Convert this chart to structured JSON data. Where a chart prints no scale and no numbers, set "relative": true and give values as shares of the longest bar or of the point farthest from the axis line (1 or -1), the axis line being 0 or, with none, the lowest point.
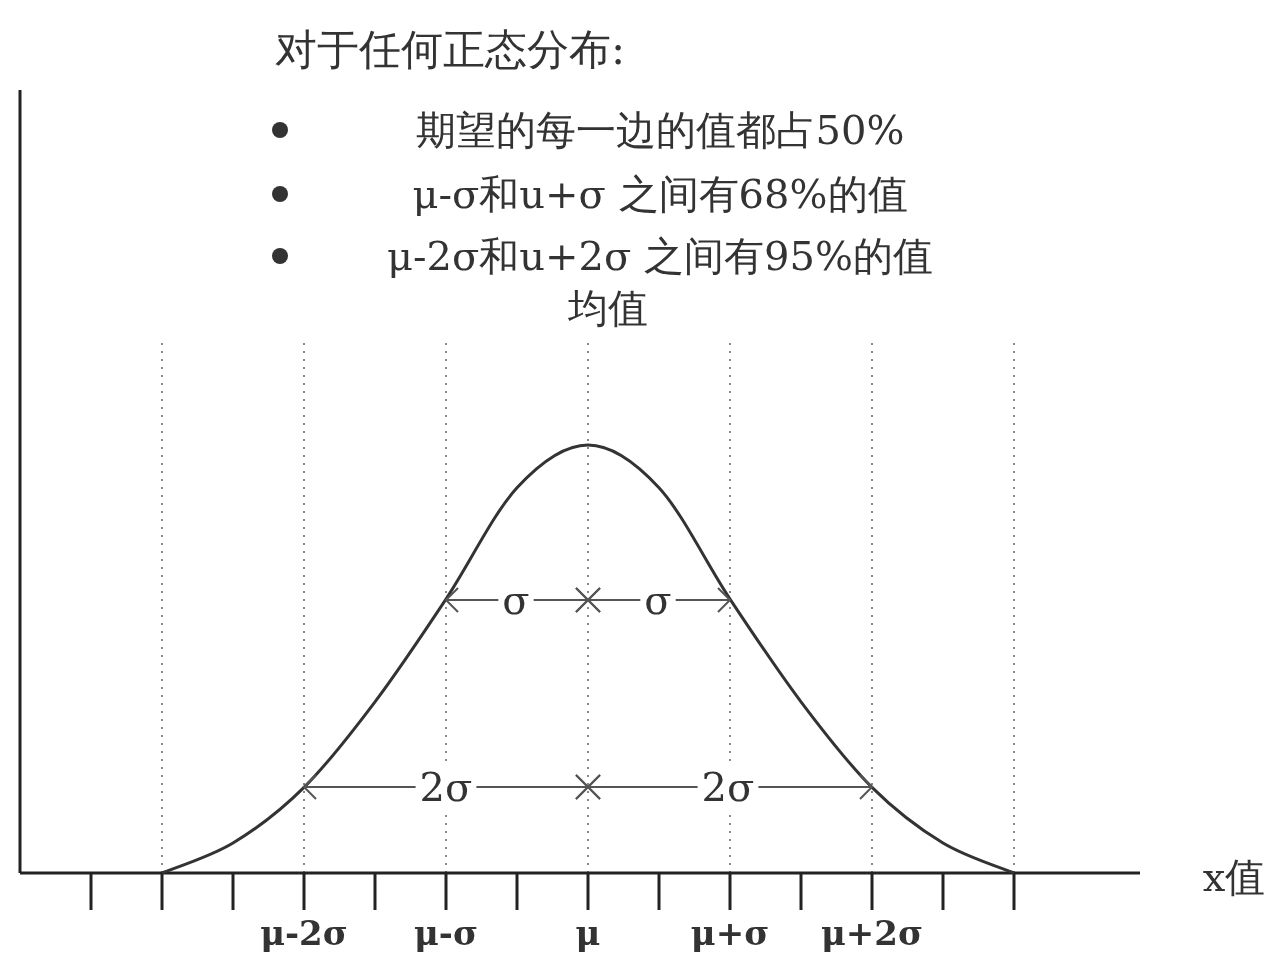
{
  "chart_data": {
    "type": "line",
    "title": "对于任何正态分布:",
    "xlabel": "x值",
    "relative": true,
    "categories": [
      null,
      null,
      null,
      "μ-2σ",
      null,
      "μ-σ",
      null,
      "μ",
      null,
      "μ+σ",
      null,
      "μ+2σ",
      null,
      null
    ],
    "series": [
      {
        "color": "#333333",
        "values": [
          null,
          0,
          0.07,
          0.2,
          0.4,
          0.64,
          0.9,
          1,
          0.9,
          0.64,
          0.4,
          0.2,
          0.07,
          0
        ]
      }
    ],
    "grid": "x",
    "annotations": [
      "期望的每一边的值都占50%",
      "μ-σ和u+σ 之间有68%的值",
      "μ-2σ和u+2σ 之间有95%的值",
      "均值",
      "σ",
      "σ",
      "2σ",
      "2σ"
    ]
  }
}
